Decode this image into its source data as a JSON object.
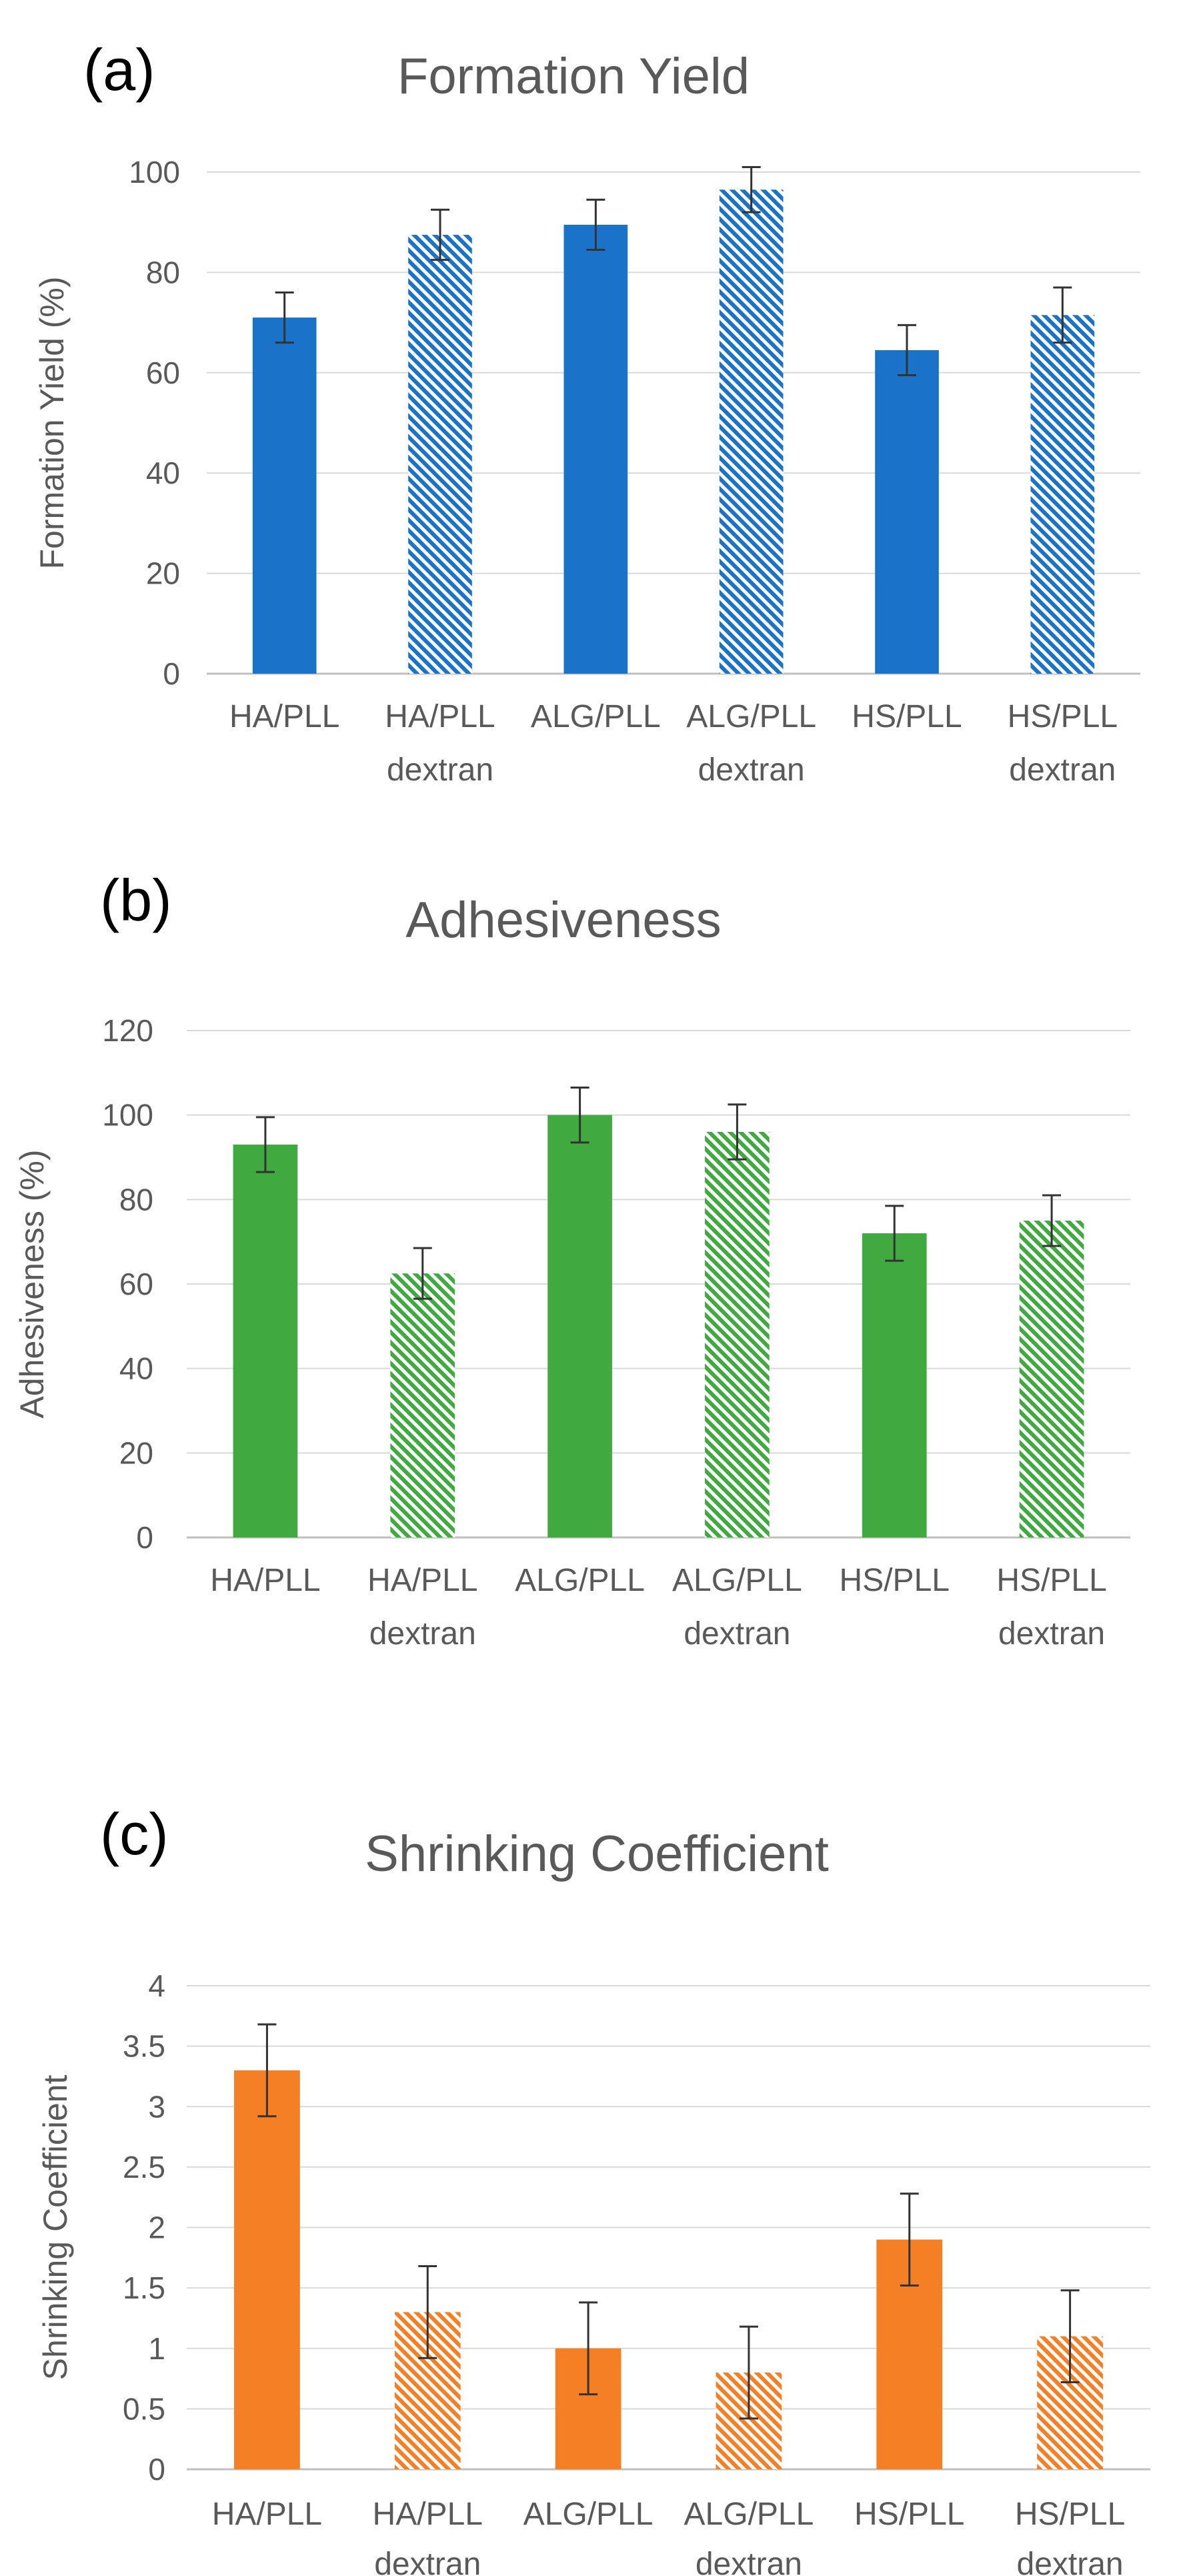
{
  "figure": {
    "panels": [
      {
        "label": "(a)",
        "title": "Formation Yield",
        "ylabel": "Formation Yield (%)"
      },
      {
        "label": "(b)",
        "title": "Adhesiveness",
        "ylabel": "Adhesiveness (%)"
      },
      {
        "label": "(c)",
        "title": "Shrinking Coefficient",
        "ylabel": "Shrinking Coefficient"
      }
    ]
  },
  "colors": {
    "blue": "#1a73c8",
    "green": "#40a93f",
    "orange": "#f57f25",
    "grid": "#d9d9d9",
    "axis": "#d9d9d9",
    "text": "#595959",
    "title": "#595959",
    "label": "#000000",
    "errorbar": "#333333"
  },
  "chart_data": [
    {
      "type": "bar",
      "title": "Formation Yield",
      "panel_label": "(a)",
      "xlabel": "",
      "ylabel": "Formation Yield (%)",
      "ylim": [
        0,
        100
      ],
      "yticks": [
        "0",
        "20",
        "40",
        "60",
        "80",
        "100"
      ],
      "categories": [
        [
          "HA/PLL"
        ],
        [
          "HA/PLL",
          "dextran"
        ],
        [
          "ALG/PLL"
        ],
        [
          "ALG/PLL",
          "dextran"
        ],
        [
          "HS/PLL"
        ],
        [
          "HS/PLL",
          "dextran"
        ]
      ],
      "values": [
        71,
        87.5,
        89.5,
        96.5,
        64.5,
        71.5
      ],
      "errors": [
        5,
        5,
        5,
        4.5,
        5,
        5.5
      ],
      "hatched": [
        false,
        true,
        false,
        true,
        false,
        true
      ],
      "color": "#1a73c8"
    },
    {
      "type": "bar",
      "title": "Adhesiveness",
      "panel_label": "(b)",
      "xlabel": "",
      "ylabel": "Adhesiveness (%)",
      "ylim": [
        0,
        120
      ],
      "yticks": [
        "0",
        "20",
        "40",
        "60",
        "80",
        "100",
        "120"
      ],
      "categories": [
        [
          "HA/PLL"
        ],
        [
          "HA/PLL",
          "dextran"
        ],
        [
          "ALG/PLL"
        ],
        [
          "ALG/PLL",
          "dextran"
        ],
        [
          "HS/PLL"
        ],
        [
          "HS/PLL",
          "dextran"
        ]
      ],
      "values": [
        93,
        62.5,
        100,
        96,
        72,
        75
      ],
      "errors": [
        6.5,
        6,
        6.5,
        6.5,
        6.5,
        6
      ],
      "hatched": [
        false,
        true,
        false,
        true,
        false,
        true
      ],
      "color": "#40a93f"
    },
    {
      "type": "bar",
      "title": "Shrinking Coefficient",
      "panel_label": "(c)",
      "xlabel": "",
      "ylabel": "Shrinking Coefficient",
      "ylim": [
        0,
        4
      ],
      "yticks": [
        "0",
        "0.5",
        "1",
        "1.5",
        "2",
        "2.5",
        "3",
        "3.5",
        "4"
      ],
      "categories": [
        [
          "HA/PLL"
        ],
        [
          "HA/PLL",
          "dextran"
        ],
        [
          "ALG/PLL"
        ],
        [
          "ALG/PLL",
          "dextran"
        ],
        [
          "HS/PLL"
        ],
        [
          "HS/PLL",
          "dextran"
        ]
      ],
      "values": [
        3.3,
        1.3,
        1.0,
        0.8,
        1.9,
        1.1
      ],
      "errors": [
        0.38,
        0.38,
        0.38,
        0.38,
        0.38,
        0.38
      ],
      "hatched": [
        false,
        true,
        false,
        true,
        false,
        true
      ],
      "color": "#f57f25"
    }
  ]
}
